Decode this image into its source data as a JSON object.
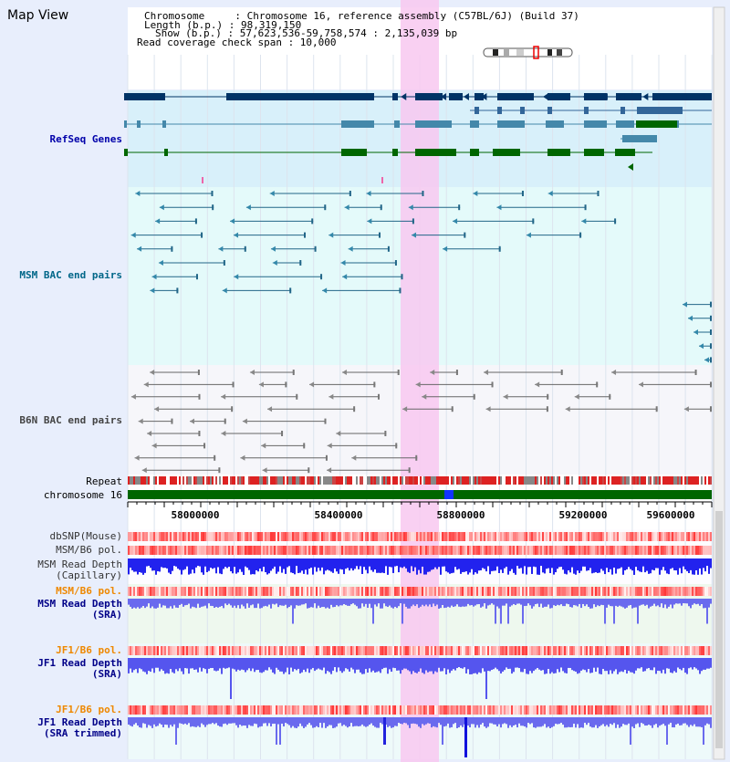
{
  "view_title": "Map View",
  "info": {
    "chromosome": "Chromosome     : Chromosome 16, reference assembly (C57BL/6J) (Build 37)",
    "length": "Length (b.p.) : 98,319,150",
    "show": "Show (b.p.) : 57,623,536-59,758,574 : 2,135,039 bp",
    "coverage": "Read coverage check span : 10,000"
  },
  "tracks": {
    "refseq": "RefSeq Genes",
    "msm_bac": "MSM BAC end pairs",
    "b6n_bac": "B6N BAC end pairs",
    "repeat": "Repeat",
    "chromosome": "chromosome 16",
    "dbsnp": "dbSNP(Mouse)",
    "msm_b6_pol1": "MSM/B6 pol.",
    "msm_depth_cap_1": "MSM Read Depth",
    "msm_depth_cap_2": "(Capillary)",
    "msm_b6_pol2": "MSM/B6 pol.",
    "msm_depth_sra_1": "MSM Read Depth",
    "msm_depth_sra_2": "(SRA)",
    "jf1_b6_pol1": "JF1/B6 pol.",
    "jf1_depth_sra_1": "JF1 Read Depth",
    "jf1_depth_sra_2": "(SRA)",
    "jf1_b6_pol2": "JF1/B6 pol.",
    "jf1_depth_trim_1": "JF1 Read Depth",
    "jf1_depth_trim_2": "(SRA trimmed)"
  },
  "axis_ticks": [
    "58000000",
    "58400000",
    "58800000",
    "59200000",
    "59600000"
  ],
  "colors": {
    "refseq_label": "#0000aa",
    "msm_label": "#006688",
    "b6n_label": "#444444",
    "pol_label": "#ee8800",
    "depth_label": "#000088",
    "highlight": "#f8c8f0",
    "gene_blue": "#003366",
    "gene_green": "#006600",
    "chrom_green": "#006600",
    "depth_blue": "#2222ee"
  }
}
